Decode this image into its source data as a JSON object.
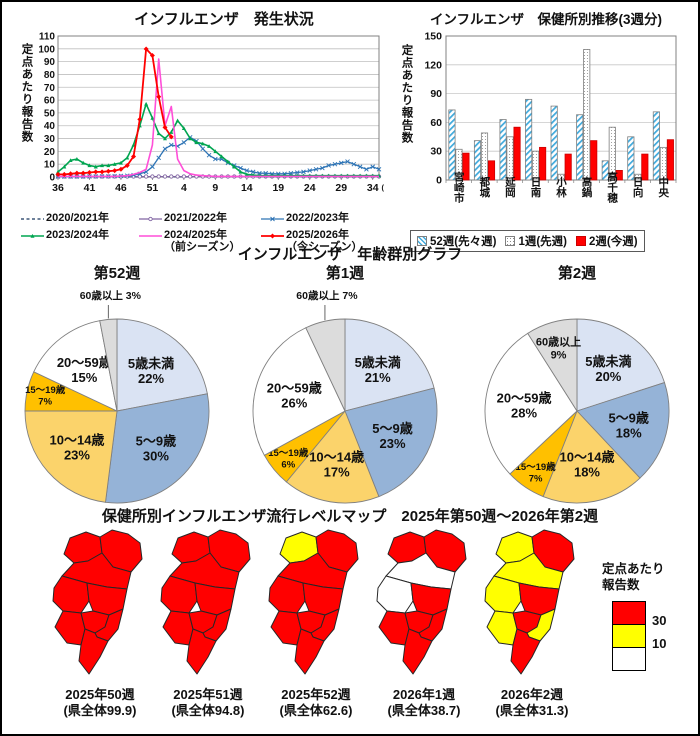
{
  "chart_data": [
    {
      "type": "line",
      "title": "インフルエンザ　発生状況",
      "ylabel": "定点あたり報告数",
      "x_axis_unit": "(週)",
      "x_tick_weeks": [
        36,
        41,
        46,
        51,
        4,
        9,
        14,
        19,
        24,
        29,
        34
      ],
      "ylim": [
        0,
        110
      ],
      "y_tick_step": 10,
      "weeks": [
        36,
        37,
        38,
        39,
        40,
        41,
        42,
        43,
        44,
        45,
        46,
        47,
        48,
        49,
        50,
        51,
        52,
        1,
        2,
        3,
        4,
        5,
        6,
        7,
        8,
        9,
        10,
        11,
        12,
        13,
        14,
        15,
        16,
        17,
        18,
        19,
        20,
        21,
        22,
        23,
        24,
        25,
        26,
        27,
        28,
        29,
        30,
        31,
        32,
        33,
        34,
        35
      ],
      "series": [
        {
          "name": "2020/2021年",
          "note": "",
          "color": "#17365d",
          "dash": "3,2.5",
          "marker": "none",
          "width": 1,
          "values": [
            0.1,
            0.1,
            0.1,
            0.1,
            0.1,
            0.1,
            0.1,
            0.1,
            0.1,
            0.1,
            0.1,
            0.1,
            0.1,
            0.1,
            0.1,
            0.1,
            0.1,
            0.1,
            0.1,
            0.1,
            0.1,
            0.1,
            0.1,
            0.1,
            0.1,
            0.1,
            0.1,
            0.1,
            0.1,
            0.1,
            0.1,
            0.1,
            0.1,
            0.1,
            0.1,
            0.1,
            0.1,
            0.1,
            0.1,
            0.1,
            0.1,
            0.1,
            0.1,
            0.1,
            0.1,
            0.1,
            0.1,
            0.1,
            0.1,
            0.1,
            0.1,
            0.1
          ]
        },
        {
          "name": "2021/2022年",
          "note": "",
          "color": "#8064a2",
          "dash": "",
          "marker": "circle-open",
          "width": 1,
          "values": [
            0.4,
            0.4,
            0.4,
            0.4,
            0.4,
            0.4,
            0.4,
            0.4,
            0.4,
            0.4,
            0.4,
            0.4,
            0.4,
            0.4,
            0.4,
            0.4,
            0.4,
            0.4,
            0.4,
            0.4,
            0.4,
            0.4,
            0.4,
            0.4,
            0.4,
            0.4,
            0.4,
            0.4,
            0.4,
            0.4,
            0.4,
            0.4,
            0.4,
            0.4,
            0.4,
            0.4,
            0.4,
            0.4,
            0.4,
            0.4,
            0.4,
            0.4,
            0.4,
            0.4,
            0.4,
            0.4,
            0.4,
            0.4,
            0.4,
            0.4,
            0.4,
            0.4
          ]
        },
        {
          "name": "2022/2023年",
          "note": "",
          "color": "#2e74b5",
          "dash": "",
          "marker": "x",
          "width": 1.3,
          "values": [
            0.3,
            0.3,
            0.3,
            0.3,
            0.3,
            0.4,
            0.4,
            0.5,
            0.5,
            0.6,
            0.8,
            1,
            1.5,
            2.5,
            4,
            8,
            15,
            22,
            25,
            24,
            27,
            31,
            28,
            22,
            17,
            14,
            14,
            11,
            9,
            7,
            5,
            4,
            3,
            3,
            2.5,
            2.5,
            2.5,
            3,
            3.5,
            4,
            5,
            6,
            7,
            9,
            10,
            11,
            12,
            10,
            8,
            6,
            8,
            6
          ]
        },
        {
          "name": "2023/2024年",
          "note": "",
          "color": "#00a550",
          "dash": "",
          "marker": "triangle",
          "width": 1.6,
          "values": [
            4,
            8,
            13,
            14,
            11,
            9,
            8,
            9,
            9,
            10,
            11,
            15,
            25,
            40,
            57,
            46,
            34,
            30,
            35,
            44,
            38,
            30,
            27,
            26,
            24,
            20,
            16,
            12,
            8,
            4,
            2,
            1.5,
            1,
            1,
            1,
            1,
            1,
            1,
            1,
            1,
            1,
            1,
            1,
            1,
            1,
            1,
            1,
            1,
            1,
            1,
            1,
            1
          ]
        },
        {
          "name": "2024/2025年",
          "note": "（前シーズン）",
          "color": "#ff4fd8",
          "dash": "",
          "marker": "none",
          "width": 1.6,
          "values": [
            0.5,
            0.5,
            0.5,
            0.5,
            0.5,
            0.5,
            0.5,
            0.5,
            0.5,
            0.5,
            0.8,
            1,
            2,
            3.5,
            6,
            25,
            92,
            40,
            55,
            14,
            5,
            2.5,
            1.5,
            1,
            0.8,
            0.5,
            0.5,
            0.5,
            0.5,
            0.5,
            0.5,
            0.5,
            0.5,
            0.5,
            0.5,
            0.5,
            0.5,
            0.5,
            0.5,
            0.5,
            0.5,
            0.5,
            0.5,
            0.5,
            0.5,
            0.5,
            0.5,
            0.5,
            0.5,
            0.5,
            0.5,
            0.5
          ]
        },
        {
          "name": "2025/2026年",
          "note": "（今シーズン）",
          "color": "#ff0000",
          "dash": "",
          "marker": "diamond",
          "width": 1.8,
          "values": [
            2,
            2,
            2.5,
            3,
            3,
            3.5,
            4,
            4,
            4.5,
            5,
            6,
            9,
            16,
            45,
            99.9,
            94.8,
            62.6,
            38.7,
            31.3,
            null,
            null,
            null,
            null,
            null,
            null,
            null,
            null,
            null,
            null,
            null,
            null,
            null,
            null,
            null,
            null,
            null,
            null,
            null,
            null,
            null,
            null,
            null,
            null,
            null,
            null,
            null,
            null,
            null,
            null,
            null,
            null,
            null
          ]
        }
      ]
    },
    {
      "type": "bar",
      "title": "インフルエンザ　保健所別推移(3週分)",
      "ylabel": "定点あたり報告数",
      "ylim": [
        0,
        150
      ],
      "y_ticks": [
        0,
        30,
        60,
        90,
        120,
        150
      ],
      "categories": [
        "宮崎市",
        "都城",
        "延岡",
        "日南",
        "小林",
        "高鍋",
        "高千穂",
        "日向",
        "中央"
      ],
      "series": [
        {
          "name": "52週(先々週)",
          "style": "hatch-blue",
          "values": [
            73,
            41,
            63,
            84,
            77,
            68,
            20,
            45,
            71
          ]
        },
        {
          "name": "1週(先週)",
          "style": "dot-gray",
          "values": [
            32,
            49,
            45,
            30,
            6,
            136,
            55,
            6,
            34
          ]
        },
        {
          "name": "2週(今週)",
          "style": "solid-red",
          "values": [
            28,
            20,
            55,
            34,
            27,
            41,
            10,
            27,
            42
          ]
        }
      ]
    },
    {
      "type": "pie",
      "title": "インフルエンザ　年齢群別グラフ",
      "age_colors": {
        "under5": "#dae3f3",
        "age5_9": "#95b3d7",
        "age10_14": "#fbd36b",
        "age15_19": "#ffc000",
        "age20_59": "#ffffff",
        "age60plus": "#dcdcdc"
      },
      "pies": [
        {
          "title": "第52週",
          "slices": [
            {
              "label": "5歳未満",
              "value": 22,
              "color_key": "under5",
              "label_pos": "in"
            },
            {
              "label": "5～9歳",
              "value": 30,
              "color_key": "age5_9",
              "label_pos": "in"
            },
            {
              "label": "10～14歳",
              "value": 23,
              "color_key": "age10_14",
              "label_pos": "in"
            },
            {
              "label": "15～19歳",
              "value": 7,
              "color_key": "age15_19",
              "label_pos": "in-small"
            },
            {
              "label": "20～59歳",
              "value": 15,
              "color_key": "age20_59",
              "label_pos": "in"
            },
            {
              "label": "60歳以上",
              "value": 3,
              "color_key": "age60plus",
              "label_pos": "out"
            }
          ]
        },
        {
          "title": "第1週",
          "slices": [
            {
              "label": "5歳未満",
              "value": 21,
              "color_key": "under5",
              "label_pos": "in"
            },
            {
              "label": "5～9歳",
              "value": 23,
              "color_key": "age5_9",
              "label_pos": "in"
            },
            {
              "label": "10～14歳",
              "value": 17,
              "color_key": "age10_14",
              "label_pos": "in"
            },
            {
              "label": "15～19歳",
              "value": 6,
              "color_key": "age15_19",
              "label_pos": "in-small"
            },
            {
              "label": "20～59歳",
              "value": 26,
              "color_key": "age20_59",
              "label_pos": "in"
            },
            {
              "label": "60歳以上",
              "value": 7,
              "color_key": "age60plus",
              "label_pos": "out"
            }
          ]
        },
        {
          "title": "第2週",
          "slices": [
            {
              "label": "5歳未満",
              "value": 20,
              "color_key": "under5",
              "label_pos": "in"
            },
            {
              "label": "5～9歳",
              "value": 18,
              "color_key": "age5_9",
              "label_pos": "in"
            },
            {
              "label": "10～14歳",
              "value": 18,
              "color_key": "age10_14",
              "label_pos": "in"
            },
            {
              "label": "15～19歳",
              "value": 7,
              "color_key": "age15_19",
              "label_pos": "in-small"
            },
            {
              "label": "20～59歳",
              "value": 28,
              "color_key": "age20_59",
              "label_pos": "in"
            },
            {
              "label": "60歳以上",
              "value": 9,
              "color_key": "age60plus",
              "label_pos": "in-mid"
            }
          ]
        }
      ]
    },
    {
      "type": "map",
      "title": "保健所別インフルエンザ流行レベルマップ　2025年第50週～2026年第2週",
      "legend": {
        "title_line1": "定点あたり",
        "title_line2": "報告数",
        "levels": [
          {
            "key": "red",
            "label": "30"
          },
          {
            "key": "yellow",
            "label": "10"
          },
          {
            "key": "white",
            "label": ""
          }
        ]
      },
      "level_colors": {
        "red": "#ff0000",
        "yellow": "#ffff00",
        "white": "#ffffff"
      },
      "districts": [
        "miyazakishi",
        "miyakonojo",
        "nobeoka",
        "nichinan",
        "kobayashi",
        "takanabe",
        "takachiho",
        "hyuga",
        "chuo"
      ],
      "maps": [
        {
          "caption": "2025年50週",
          "subcaption": "(県全体99.9)",
          "fills": [
            "red",
            "red",
            "red",
            "red",
            "red",
            "red",
            "red",
            "red",
            "red"
          ]
        },
        {
          "caption": "2025年51週",
          "subcaption": "(県全体94.8)",
          "fills": [
            "red",
            "red",
            "red",
            "red",
            "red",
            "red",
            "red",
            "red",
            "red"
          ]
        },
        {
          "caption": "2025年52週",
          "subcaption": "(県全体62.6)",
          "fills": [
            "red",
            "red",
            "red",
            "red",
            "red",
            "red",
            "yellow",
            "red",
            "red"
          ]
        },
        {
          "caption": "2026年1週",
          "subcaption": "(県全体38.7)",
          "fills": [
            "red",
            "red",
            "red",
            "red",
            "white",
            "red",
            "red",
            "white",
            "red"
          ]
        },
        {
          "caption": "2026年2週",
          "subcaption": "(県全体31.3)",
          "fills": [
            "yellow",
            "yellow",
            "red",
            "red",
            "yellow",
            "red",
            "yellow",
            "yellow",
            "red"
          ]
        }
      ]
    }
  ]
}
